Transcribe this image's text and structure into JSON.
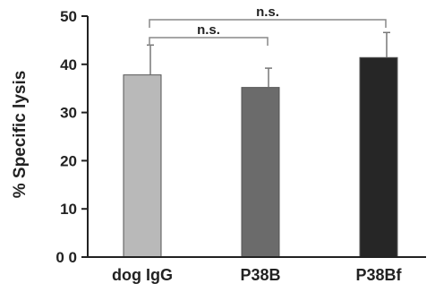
{
  "chart_data": {
    "type": "bar",
    "categories": [
      "dog IgG",
      "P38B",
      "P38Bf"
    ],
    "values": [
      37.8,
      35.2,
      41.4
    ],
    "errors": [
      6.2,
      4.0,
      5.2
    ],
    "colors": [
      "#b9b9b9",
      "#6b6b6b",
      "#262626"
    ],
    "ylabel": "% Specific lysis",
    "ylim": [
      0,
      50
    ],
    "yticks": [
      0,
      10,
      20,
      30,
      40,
      50
    ],
    "ytick_labels": [
      "0 0",
      "10",
      "20",
      "30",
      "40",
      "50"
    ],
    "grid": false,
    "significance": [
      {
        "from": 0,
        "to": 1,
        "label": "n.s."
      },
      {
        "from": 0,
        "to": 2,
        "label": "n.s."
      }
    ]
  }
}
